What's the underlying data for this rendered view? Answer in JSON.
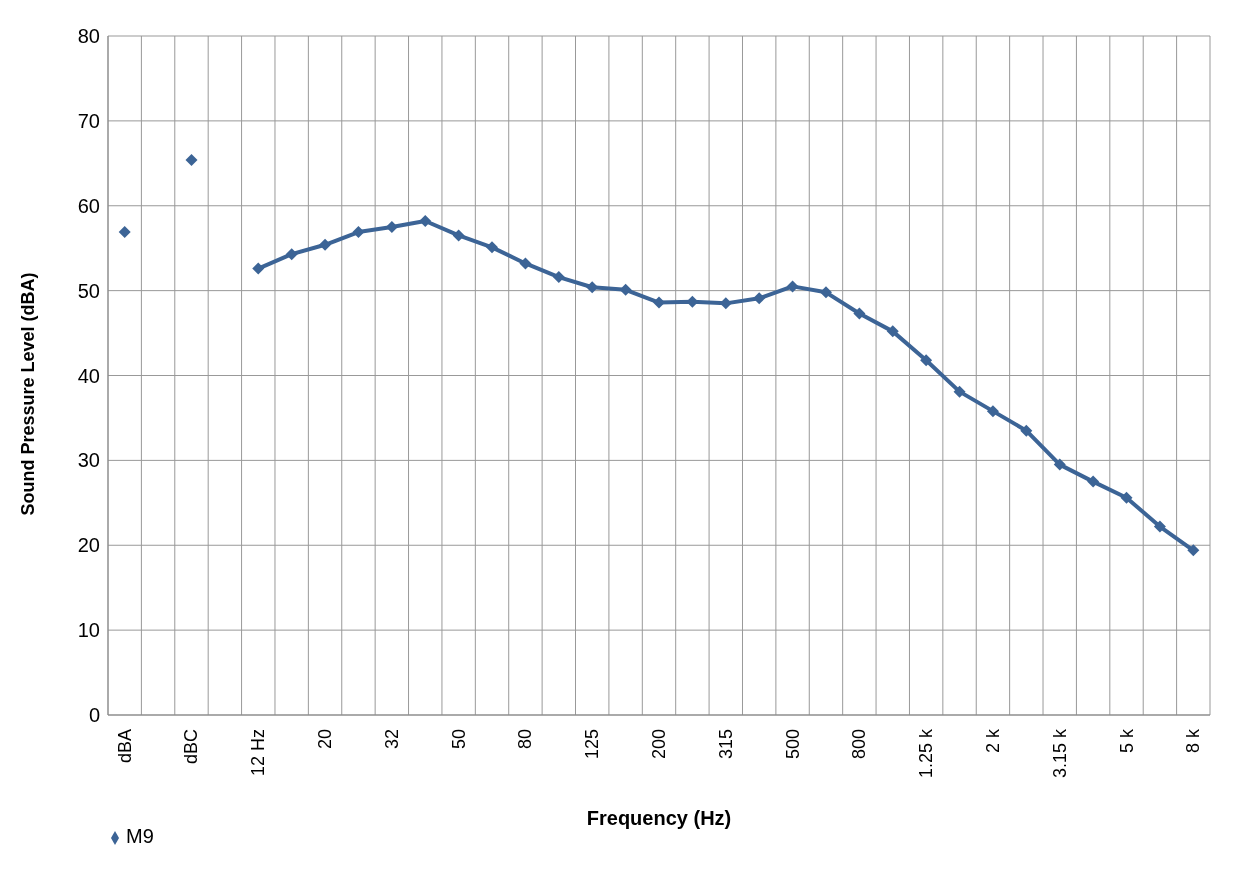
{
  "chart_data": {
    "type": "line",
    "xlabel": "Frequency (Hz)",
    "ylabel": "Sound Pressure Level (dBA)",
    "categories": [
      "dBA",
      null,
      "dBC",
      null,
      "12 Hz",
      null,
      "20",
      null,
      "32",
      null,
      "50",
      null,
      "80",
      null,
      "125",
      null,
      "200",
      null,
      "315",
      null,
      "500",
      null,
      "800",
      null,
      "1.25 k",
      null,
      "2 k",
      null,
      "3.15 k",
      null,
      "5 k",
      null,
      "8 k"
    ],
    "series": [
      {
        "name": "M9",
        "color": "#3c6496",
        "values": [
          56.9,
          null,
          65.4,
          null,
          52.6,
          54.3,
          55.4,
          56.9,
          57.5,
          58.2,
          56.5,
          55.1,
          53.2,
          51.6,
          50.4,
          50.1,
          48.6,
          48.7,
          48.5,
          49.1,
          50.5,
          49.8,
          47.3,
          45.2,
          41.8,
          38.1,
          35.8,
          33.5,
          29.5,
          27.5,
          25.6,
          22.2,
          19.4
        ]
      }
    ],
    "ylim": [
      0,
      80
    ],
    "yticks": [
      0,
      10,
      20,
      30,
      40,
      50,
      60,
      70,
      80
    ],
    "grid": true,
    "legend": "bottom left",
    "marker": "diamond",
    "line_style": "solid"
  }
}
